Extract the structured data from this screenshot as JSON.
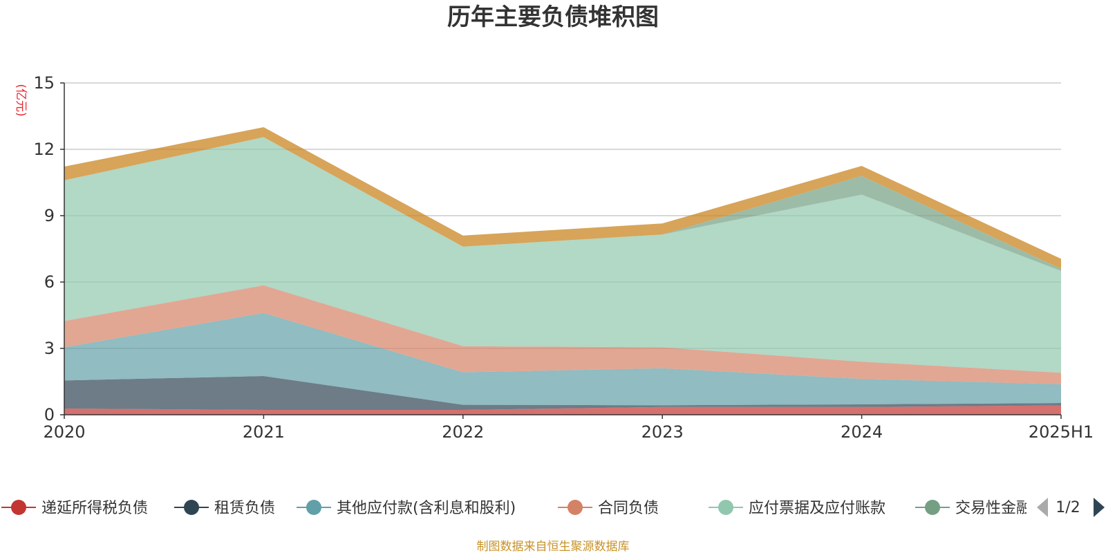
{
  "title": "历年主要负债堆积图",
  "source_note": "制图数据来自恒生聚源数据库",
  "legend_page": "1/2",
  "colors": {
    "grid": "#cccccc",
    "axis": "#333333",
    "prev_arrow": "#aaaaaa",
    "next_arrow": "#2f4554"
  },
  "chart_data": {
    "type": "area",
    "stacked": true,
    "unit_label": "(亿元)",
    "categories": [
      "2020",
      "2021",
      "2022",
      "2023",
      "2024",
      "2025H1"
    ],
    "ylim": [
      0,
      15
    ],
    "yticks": [
      "0",
      "3",
      "6",
      "9",
      "12",
      "15"
    ],
    "grid": true,
    "legend_position": "bottom",
    "series": [
      {
        "name": "递延所得税负债",
        "color": "#c23531",
        "values": [
          0.28,
          0.22,
          0.22,
          0.35,
          0.35,
          0.42
        ]
      },
      {
        "name": "租赁负债",
        "color": "#2f4554",
        "values": [
          1.27,
          1.53,
          0.23,
          0.08,
          0.12,
          0.11
        ]
      },
      {
        "name": "其他应付款(含利息和股利)",
        "color": "#61a0a8",
        "values": [
          1.5,
          2.85,
          1.47,
          1.67,
          1.15,
          0.85
        ]
      },
      {
        "name": "合同负债",
        "color": "#d48265",
        "values": [
          1.19,
          1.25,
          1.18,
          0.95,
          0.78,
          0.52
        ]
      },
      {
        "name": "应付票据及应付账款",
        "color": "#91c7ae",
        "values": [
          6.36,
          6.7,
          4.5,
          5.1,
          7.55,
          4.6
        ]
      },
      {
        "name": "交易性金融负债",
        "color": "#749f83",
        "values": [
          0,
          0,
          0,
          0,
          0.85,
          0.1
        ]
      },
      {
        "name": "",
        "color": "#ca8622",
        "values": [
          0.62,
          0.45,
          0.5,
          0.5,
          0.45,
          0.45
        ]
      }
    ]
  }
}
